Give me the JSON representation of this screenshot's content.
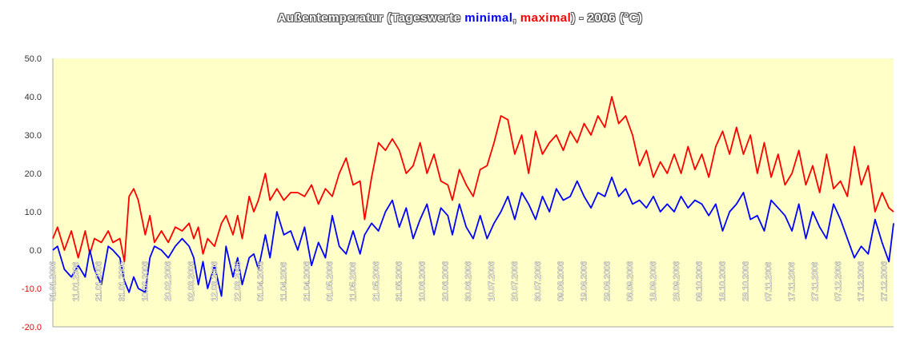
{
  "chart_data": {
    "type": "line",
    "title": {
      "part1": "Außentemperatur (Tageswerte ",
      "min_word": "minimal",
      "sep": ", ",
      "max_word": "maximal",
      "part2": ") - 2006 (°C)"
    },
    "xlabel": "",
    "ylabel": "",
    "ylim": [
      -20,
      50
    ],
    "yticks": [
      "50.0",
      "40.0",
      "30.0",
      "20.0",
      "10.0",
      "0.0",
      "-10.0",
      "-20.0"
    ],
    "xlim": [
      "2006-01-01",
      "2006-12-31"
    ],
    "xticks": [
      "01.01.2006",
      "11.01.2006",
      "21.01.2006",
      "31.01.2006",
      "10.02.2006",
      "20.02.2006",
      "02.03.2006",
      "12.03.2006",
      "22.03.2006",
      "01.04.2006",
      "11.04.2006",
      "21.04.2006",
      "01.05.2006",
      "11.05.2006",
      "21.05.2006",
      "31.05.2006",
      "10.06.2006",
      "20.06.2006",
      "30.06.2006",
      "10.07.2006",
      "20.07.2006",
      "30.07.2006",
      "09.08.2006",
      "19.08.2006",
      "29.08.2006",
      "08.09.2006",
      "18.09.2006",
      "28.09.2006",
      "08.10.2006",
      "18.10.2006",
      "28.10.2006",
      "07.11.2006",
      "17.11.2006",
      "27.11.2006",
      "07.12.2006",
      "17.12.2006",
      "27.12.2006"
    ],
    "grid": false,
    "plot_background": "#ffffc8",
    "series": [
      {
        "key": "max",
        "color": "#ff0000",
        "points": [
          [
            "2006-01-01",
            3
          ],
          [
            "2006-01-03",
            6
          ],
          [
            "2006-01-06",
            0
          ],
          [
            "2006-01-09",
            5
          ],
          [
            "2006-01-12",
            -2
          ],
          [
            "2006-01-15",
            5
          ],
          [
            "2006-01-17",
            -1
          ],
          [
            "2006-01-19",
            3
          ],
          [
            "2006-01-22",
            2
          ],
          [
            "2006-01-25",
            5
          ],
          [
            "2006-01-27",
            2
          ],
          [
            "2006-01-30",
            3
          ],
          [
            "2006-02-01",
            -3
          ],
          [
            "2006-02-03",
            14
          ],
          [
            "2006-02-05",
            16
          ],
          [
            "2006-02-07",
            13
          ],
          [
            "2006-02-10",
            4
          ],
          [
            "2006-02-12",
            9
          ],
          [
            "2006-02-14",
            2
          ],
          [
            "2006-02-17",
            5
          ],
          [
            "2006-02-20",
            2
          ],
          [
            "2006-02-23",
            6
          ],
          [
            "2006-02-26",
            5
          ],
          [
            "2006-03-01",
            7
          ],
          [
            "2006-03-03",
            3
          ],
          [
            "2006-03-05",
            6
          ],
          [
            "2006-03-07",
            -1
          ],
          [
            "2006-03-09",
            3
          ],
          [
            "2006-03-12",
            1
          ],
          [
            "2006-03-15",
            7
          ],
          [
            "2006-03-17",
            9
          ],
          [
            "2006-03-20",
            4
          ],
          [
            "2006-03-22",
            9
          ],
          [
            "2006-03-24",
            3
          ],
          [
            "2006-03-27",
            14
          ],
          [
            "2006-03-29",
            10
          ],
          [
            "2006-03-31",
            13
          ],
          [
            "2006-04-03",
            20
          ],
          [
            "2006-04-05",
            13
          ],
          [
            "2006-04-08",
            16
          ],
          [
            "2006-04-11",
            13
          ],
          [
            "2006-04-14",
            15
          ],
          [
            "2006-04-17",
            15
          ],
          [
            "2006-04-20",
            14
          ],
          [
            "2006-04-23",
            17
          ],
          [
            "2006-04-26",
            12
          ],
          [
            "2006-04-29",
            16
          ],
          [
            "2006-05-02",
            14
          ],
          [
            "2006-05-05",
            20
          ],
          [
            "2006-05-08",
            24
          ],
          [
            "2006-05-11",
            17
          ],
          [
            "2006-05-14",
            18
          ],
          [
            "2006-05-16",
            8
          ],
          [
            "2006-05-19",
            19
          ],
          [
            "2006-05-22",
            28
          ],
          [
            "2006-05-25",
            26
          ],
          [
            "2006-05-28",
            29
          ],
          [
            "2006-05-31",
            26
          ],
          [
            "2006-06-03",
            20
          ],
          [
            "2006-06-06",
            22
          ],
          [
            "2006-06-09",
            28
          ],
          [
            "2006-06-12",
            20
          ],
          [
            "2006-06-15",
            25
          ],
          [
            "2006-06-18",
            18
          ],
          [
            "2006-06-21",
            17
          ],
          [
            "2006-06-23",
            13
          ],
          [
            "2006-06-26",
            21
          ],
          [
            "2006-06-29",
            17
          ],
          [
            "2006-07-02",
            14
          ],
          [
            "2006-07-05",
            21
          ],
          [
            "2006-07-08",
            22
          ],
          [
            "2006-07-11",
            28
          ],
          [
            "2006-07-14",
            35
          ],
          [
            "2006-07-17",
            34
          ],
          [
            "2006-07-20",
            25
          ],
          [
            "2006-07-23",
            30
          ],
          [
            "2006-07-26",
            20
          ],
          [
            "2006-07-29",
            31
          ],
          [
            "2006-08-01",
            25
          ],
          [
            "2006-08-04",
            28
          ],
          [
            "2006-08-07",
            30
          ],
          [
            "2006-08-10",
            26
          ],
          [
            "2006-08-13",
            31
          ],
          [
            "2006-08-16",
            28
          ],
          [
            "2006-08-19",
            33
          ],
          [
            "2006-08-22",
            30
          ],
          [
            "2006-08-25",
            35
          ],
          [
            "2006-08-28",
            32
          ],
          [
            "2006-08-31",
            40
          ],
          [
            "2006-09-03",
            33
          ],
          [
            "2006-09-06",
            35
          ],
          [
            "2006-09-09",
            30
          ],
          [
            "2006-09-12",
            22
          ],
          [
            "2006-09-15",
            26
          ],
          [
            "2006-09-18",
            19
          ],
          [
            "2006-09-21",
            23
          ],
          [
            "2006-09-24",
            20
          ],
          [
            "2006-09-27",
            25
          ],
          [
            "2006-09-30",
            20
          ],
          [
            "2006-10-03",
            27
          ],
          [
            "2006-10-06",
            21
          ],
          [
            "2006-10-09",
            25
          ],
          [
            "2006-10-12",
            19
          ],
          [
            "2006-10-15",
            27
          ],
          [
            "2006-10-18",
            31
          ],
          [
            "2006-10-21",
            25
          ],
          [
            "2006-10-24",
            32
          ],
          [
            "2006-10-27",
            25
          ],
          [
            "2006-10-30",
            30
          ],
          [
            "2006-11-02",
            20
          ],
          [
            "2006-11-05",
            28
          ],
          [
            "2006-11-08",
            19
          ],
          [
            "2006-11-11",
            25
          ],
          [
            "2006-11-14",
            17
          ],
          [
            "2006-11-17",
            20
          ],
          [
            "2006-11-20",
            26
          ],
          [
            "2006-11-23",
            17
          ],
          [
            "2006-11-26",
            22
          ],
          [
            "2006-11-29",
            15
          ],
          [
            "2006-12-02",
            25
          ],
          [
            "2006-12-05",
            16
          ],
          [
            "2006-12-08",
            18
          ],
          [
            "2006-12-11",
            14
          ],
          [
            "2006-12-14",
            27
          ],
          [
            "2006-12-17",
            17
          ],
          [
            "2006-12-20",
            22
          ],
          [
            "2006-12-23",
            10
          ],
          [
            "2006-12-26",
            15
          ],
          [
            "2006-12-29",
            11
          ],
          [
            "2006-12-31",
            10
          ]
        ]
      },
      {
        "key": "min",
        "color": "#0000ff",
        "points": [
          [
            "2006-01-01",
            0
          ],
          [
            "2006-01-03",
            1
          ],
          [
            "2006-01-06",
            -5
          ],
          [
            "2006-01-09",
            -7
          ],
          [
            "2006-01-12",
            -4
          ],
          [
            "2006-01-15",
            -7
          ],
          [
            "2006-01-17",
            0
          ],
          [
            "2006-01-19",
            -5
          ],
          [
            "2006-01-22",
            -9
          ],
          [
            "2006-01-25",
            1
          ],
          [
            "2006-01-27",
            0
          ],
          [
            "2006-01-30",
            -2
          ],
          [
            "2006-02-01",
            -8
          ],
          [
            "2006-02-03",
            -11
          ],
          [
            "2006-02-05",
            -7
          ],
          [
            "2006-02-07",
            -10
          ],
          [
            "2006-02-10",
            -11
          ],
          [
            "2006-02-12",
            -2
          ],
          [
            "2006-02-14",
            1
          ],
          [
            "2006-02-17",
            0
          ],
          [
            "2006-02-20",
            -2
          ],
          [
            "2006-02-23",
            1
          ],
          [
            "2006-02-26",
            3
          ],
          [
            "2006-03-01",
            1
          ],
          [
            "2006-03-03",
            -2
          ],
          [
            "2006-03-05",
            -9
          ],
          [
            "2006-03-07",
            -3
          ],
          [
            "2006-03-09",
            -10
          ],
          [
            "2006-03-12",
            -4
          ],
          [
            "2006-03-15",
            -12
          ],
          [
            "2006-03-17",
            1
          ],
          [
            "2006-03-20",
            -7
          ],
          [
            "2006-03-22",
            -2
          ],
          [
            "2006-03-24",
            -9
          ],
          [
            "2006-03-27",
            -2
          ],
          [
            "2006-03-29",
            -1
          ],
          [
            "2006-03-31",
            -5
          ],
          [
            "2006-04-03",
            4
          ],
          [
            "2006-04-05",
            -2
          ],
          [
            "2006-04-08",
            10
          ],
          [
            "2006-04-11",
            4
          ],
          [
            "2006-04-14",
            5
          ],
          [
            "2006-04-17",
            0
          ],
          [
            "2006-04-20",
            6
          ],
          [
            "2006-04-23",
            -4
          ],
          [
            "2006-04-26",
            2
          ],
          [
            "2006-04-29",
            -2
          ],
          [
            "2006-05-02",
            9
          ],
          [
            "2006-05-05",
            1
          ],
          [
            "2006-05-08",
            -1
          ],
          [
            "2006-05-11",
            5
          ],
          [
            "2006-05-14",
            -1
          ],
          [
            "2006-05-16",
            4
          ],
          [
            "2006-05-19",
            7
          ],
          [
            "2006-05-22",
            5
          ],
          [
            "2006-05-25",
            10
          ],
          [
            "2006-05-28",
            13
          ],
          [
            "2006-05-31",
            6
          ],
          [
            "2006-06-03",
            11
          ],
          [
            "2006-06-06",
            3
          ],
          [
            "2006-06-09",
            8
          ],
          [
            "2006-06-12",
            12
          ],
          [
            "2006-06-15",
            4
          ],
          [
            "2006-06-18",
            11
          ],
          [
            "2006-06-21",
            9
          ],
          [
            "2006-06-23",
            4
          ],
          [
            "2006-06-26",
            12
          ],
          [
            "2006-06-29",
            6
          ],
          [
            "2006-07-02",
            3
          ],
          [
            "2006-07-05",
            9
          ],
          [
            "2006-07-08",
            3
          ],
          [
            "2006-07-11",
            7
          ],
          [
            "2006-07-14",
            10
          ],
          [
            "2006-07-17",
            14
          ],
          [
            "2006-07-20",
            8
          ],
          [
            "2006-07-23",
            15
          ],
          [
            "2006-07-26",
            12
          ],
          [
            "2006-07-29",
            8
          ],
          [
            "2006-08-01",
            14
          ],
          [
            "2006-08-04",
            10
          ],
          [
            "2006-08-07",
            16
          ],
          [
            "2006-08-10",
            13
          ],
          [
            "2006-08-13",
            14
          ],
          [
            "2006-08-16",
            18
          ],
          [
            "2006-08-19",
            14
          ],
          [
            "2006-08-22",
            11
          ],
          [
            "2006-08-25",
            15
          ],
          [
            "2006-08-28",
            14
          ],
          [
            "2006-08-31",
            19
          ],
          [
            "2006-09-03",
            14
          ],
          [
            "2006-09-06",
            16
          ],
          [
            "2006-09-09",
            12
          ],
          [
            "2006-09-12",
            13
          ],
          [
            "2006-09-15",
            11
          ],
          [
            "2006-09-18",
            14
          ],
          [
            "2006-09-21",
            10
          ],
          [
            "2006-09-24",
            12
          ],
          [
            "2006-09-27",
            10
          ],
          [
            "2006-09-30",
            14
          ],
          [
            "2006-10-03",
            11
          ],
          [
            "2006-10-06",
            13
          ],
          [
            "2006-10-09",
            12
          ],
          [
            "2006-10-12",
            9
          ],
          [
            "2006-10-15",
            12
          ],
          [
            "2006-10-18",
            5
          ],
          [
            "2006-10-21",
            10
          ],
          [
            "2006-10-24",
            12
          ],
          [
            "2006-10-27",
            15
          ],
          [
            "2006-10-30",
            8
          ],
          [
            "2006-11-02",
            9
          ],
          [
            "2006-11-05",
            5
          ],
          [
            "2006-11-08",
            13
          ],
          [
            "2006-11-11",
            11
          ],
          [
            "2006-11-14",
            9
          ],
          [
            "2006-11-17",
            5
          ],
          [
            "2006-11-20",
            12
          ],
          [
            "2006-11-23",
            3
          ],
          [
            "2006-11-26",
            10
          ],
          [
            "2006-11-29",
            6
          ],
          [
            "2006-12-02",
            3
          ],
          [
            "2006-12-05",
            12
          ],
          [
            "2006-12-08",
            8
          ],
          [
            "2006-12-11",
            3
          ],
          [
            "2006-12-14",
            -2
          ],
          [
            "2006-12-17",
            1
          ],
          [
            "2006-12-20",
            -1
          ],
          [
            "2006-12-23",
            8
          ],
          [
            "2006-12-26",
            2
          ],
          [
            "2006-12-29",
            -3
          ],
          [
            "2006-12-31",
            7
          ]
        ]
      }
    ]
  }
}
